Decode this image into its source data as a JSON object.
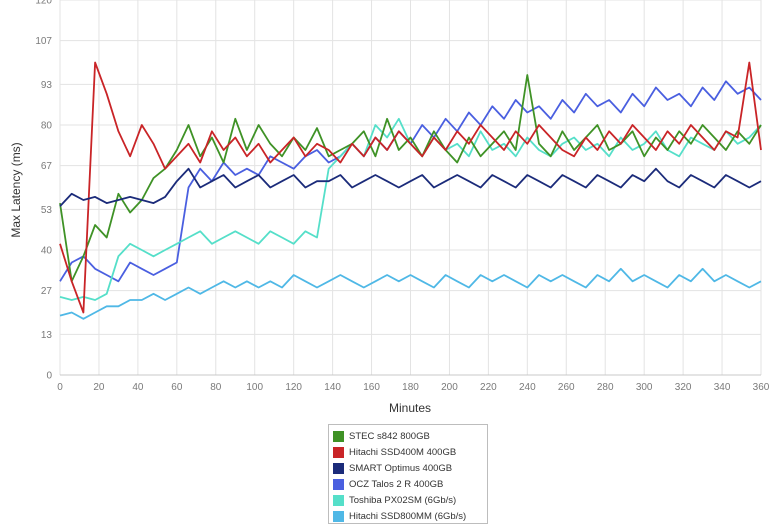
{
  "chart_data": {
    "type": "line",
    "xlabel": "Minutes",
    "ylabel": "Max Latency (ms)",
    "xlim": [
      0,
      360
    ],
    "ylim": [
      0,
      120
    ],
    "x_ticks": [
      "0",
      "20",
      "40",
      "60",
      "80",
      "100",
      "120",
      "140",
      "160",
      "180",
      "200",
      "220",
      "240",
      "260",
      "280",
      "300",
      "320",
      "340",
      "360"
    ],
    "y_ticks": [
      "0",
      "13",
      "27",
      "40",
      "53",
      "67",
      "80",
      "93",
      "107",
      "120"
    ],
    "grid": true,
    "legend_position": "bottom-center",
    "x": [
      0,
      6,
      12,
      18,
      24,
      30,
      36,
      42,
      48,
      54,
      60,
      66,
      72,
      78,
      84,
      90,
      96,
      102,
      108,
      114,
      120,
      126,
      132,
      138,
      144,
      150,
      156,
      162,
      168,
      174,
      180,
      186,
      192,
      198,
      204,
      210,
      216,
      222,
      228,
      234,
      240,
      246,
      252,
      258,
      264,
      270,
      276,
      282,
      288,
      294,
      300,
      306,
      312,
      318,
      324,
      330,
      336,
      342,
      348,
      354,
      360
    ],
    "series": [
      {
        "name": "STEC s842 800GB",
        "color": "#3f9226",
        "values": [
          55,
          30,
          38,
          48,
          44,
          58,
          52,
          56,
          63,
          66,
          72,
          80,
          70,
          76,
          68,
          82,
          72,
          80,
          74,
          70,
          76,
          72,
          79,
          70,
          72,
          74,
          78,
          70,
          82,
          72,
          76,
          70,
          78,
          72,
          68,
          76,
          70,
          74,
          78,
          72,
          96,
          74,
          70,
          78,
          72,
          76,
          80,
          72,
          74,
          78,
          70,
          76,
          72,
          78,
          74,
          80,
          76,
          72,
          78,
          74,
          80
        ]
      },
      {
        "name": "Hitachi SSD400M 400GB",
        "color": "#c92427",
        "values": [
          42,
          30,
          20,
          100,
          90,
          78,
          70,
          80,
          74,
          66,
          70,
          74,
          68,
          78,
          72,
          76,
          70,
          74,
          68,
          72,
          76,
          70,
          74,
          72,
          68,
          74,
          70,
          76,
          72,
          78,
          74,
          70,
          76,
          72,
          78,
          74,
          80,
          76,
          72,
          78,
          74,
          80,
          76,
          72,
          70,
          76,
          72,
          78,
          74,
          80,
          76,
          72,
          78,
          74,
          80,
          76,
          72,
          78,
          76,
          100,
          72
        ]
      },
      {
        "name": "SMART Optimus 400GB",
        "color": "#1b2b7a",
        "values": [
          54,
          58,
          56,
          57,
          55,
          56,
          57,
          56,
          55,
          57,
          62,
          66,
          60,
          62,
          64,
          60,
          62,
          64,
          60,
          62,
          64,
          60,
          62,
          62,
          64,
          60,
          62,
          64,
          62,
          60,
          62,
          64,
          60,
          62,
          64,
          62,
          60,
          64,
          62,
          60,
          64,
          62,
          60,
          64,
          62,
          60,
          64,
          62,
          60,
          64,
          62,
          66,
          62,
          60,
          64,
          62,
          60,
          64,
          62,
          60,
          62
        ]
      },
      {
        "name": "OCZ Talos 2 R 400GB",
        "color": "#4a5fe0",
        "values": [
          30,
          36,
          38,
          34,
          32,
          30,
          36,
          34,
          32,
          34,
          36,
          60,
          66,
          62,
          68,
          64,
          66,
          64,
          70,
          68,
          66,
          70,
          72,
          68,
          70,
          74,
          70,
          76,
          72,
          78,
          74,
          80,
          76,
          82,
          78,
          84,
          80,
          86,
          82,
          88,
          84,
          86,
          82,
          88,
          84,
          90,
          86,
          88,
          84,
          90,
          86,
          92,
          88,
          90,
          86,
          92,
          88,
          94,
          90,
          92,
          88
        ]
      },
      {
        "name": "Toshiba PX02SM (6Gb/s)",
        "color": "#55dfc9",
        "values": [
          25,
          24,
          25,
          24,
          26,
          38,
          42,
          40,
          38,
          40,
          42,
          44,
          46,
          42,
          44,
          46,
          44,
          42,
          46,
          44,
          42,
          46,
          44,
          66,
          70,
          74,
          70,
          80,
          76,
          82,
          74,
          70,
          76,
          72,
          74,
          70,
          78,
          72,
          74,
          70,
          76,
          72,
          70,
          74,
          76,
          72,
          74,
          70,
          76,
          72,
          74,
          78,
          72,
          70,
          76,
          74,
          72,
          78,
          74,
          76,
          80
        ]
      },
      {
        "name": "Hitachi SSD800MM (6Gb/s)",
        "color": "#4fb8e6",
        "values": [
          19,
          20,
          18,
          20,
          22,
          22,
          24,
          24,
          26,
          24,
          26,
          28,
          26,
          28,
          30,
          28,
          30,
          28,
          30,
          28,
          32,
          30,
          28,
          30,
          32,
          30,
          28,
          30,
          32,
          30,
          32,
          30,
          28,
          32,
          30,
          28,
          32,
          30,
          32,
          30,
          28,
          32,
          30,
          32,
          30,
          28,
          32,
          30,
          34,
          30,
          32,
          30,
          28,
          32,
          30,
          34,
          30,
          32,
          30,
          28,
          30
        ]
      }
    ]
  },
  "legend": {
    "items": [
      {
        "label": "STEC s842 800GB",
        "color": "#3f9226"
      },
      {
        "label": "Hitachi SSD400M 400GB",
        "color": "#c92427"
      },
      {
        "label": "SMART Optimus 400GB",
        "color": "#1b2b7a"
      },
      {
        "label": "OCZ Talos 2 R 400GB",
        "color": "#4a5fe0"
      },
      {
        "label": "Toshiba PX02SM (6Gb/s)",
        "color": "#55dfc9"
      },
      {
        "label": "Hitachi SSD800MM (6Gb/s)",
        "color": "#4fb8e6"
      }
    ]
  }
}
